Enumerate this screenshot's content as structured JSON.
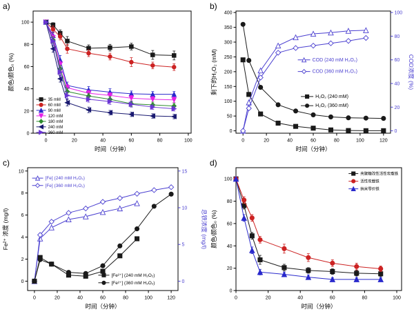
{
  "figure": {
    "xlabel_shared": "时间（分钟）",
    "accent_blue": "#4a3fd0",
    "background": "#ffffff"
  },
  "chart_data": [
    {
      "id": "a",
      "type": "line",
      "panel_label": "a)",
      "xlabel": "时间（分钟）",
      "ylabel": "颜色/颜色₀ (%)",
      "xlim": [
        -9,
        102
      ],
      "ylim": [
        0,
        110
      ],
      "xticks": [
        0,
        20,
        40,
        60,
        80,
        100
      ],
      "yticks": [
        0,
        20,
        40,
        60,
        80,
        100
      ],
      "margins": {
        "l": 48,
        "r": 23,
        "t": 16,
        "b": 34
      },
      "legend_position": "lower-left",
      "grid": false,
      "series": [
        {
          "name": "35 mM",
          "color": "#1a1a1a",
          "label_color": "#000000",
          "marker": "square",
          "fill": true,
          "axis": "left",
          "x": [
            0,
            5,
            10,
            15,
            30,
            45,
            60,
            75,
            90
          ],
          "y": [
            100,
            97.5,
            90,
            83,
            76.5,
            77,
            78,
            70.5,
            70
          ],
          "yerr": [
            0,
            2,
            3,
            4,
            3,
            3,
            3,
            4,
            4
          ]
        },
        {
          "name": "60 mM",
          "color": "#cc2222",
          "label_color": "#000000",
          "marker": "circle",
          "fill": true,
          "axis": "left",
          "x": [
            0,
            5,
            10,
            15,
            30,
            45,
            60,
            75,
            90
          ],
          "y": [
            100,
            93.5,
            87,
            76,
            72,
            69,
            64,
            61,
            59.5
          ],
          "yerr": [
            0,
            3,
            3,
            4,
            3,
            3,
            4,
            3,
            3
          ]
        },
        {
          "name": "90 mM",
          "color": "#2929cc",
          "label_color": "#000000",
          "marker": "triangle-up",
          "fill": true,
          "axis": "left",
          "x": [
            0,
            5,
            10,
            15,
            30,
            45,
            60,
            75,
            90
          ],
          "y": [
            100,
            88,
            66,
            43,
            39,
            37,
            35.5,
            35,
            35
          ],
          "yerr": [
            0,
            3,
            4,
            3,
            3,
            3,
            2.5,
            2.5,
            2.5
          ]
        },
        {
          "name": "120 mM",
          "color": "#e622e6",
          "label_color": "#000000",
          "marker": "triangle-down",
          "fill": true,
          "axis": "left",
          "x": [
            0,
            5,
            10,
            15,
            30,
            45,
            60,
            75,
            90
          ],
          "y": [
            100,
            86,
            62,
            41,
            36,
            34,
            31.5,
            30.5,
            30
          ],
          "yerr": [
            0,
            3,
            3,
            3,
            2.5,
            2.5,
            2.5,
            2.5,
            2.5
          ]
        },
        {
          "name": "180 mM",
          "color": "#2e8b2e",
          "label_color": "#000000",
          "marker": "diamond",
          "fill": true,
          "axis": "left",
          "x": [
            0,
            5,
            10,
            15,
            30,
            45,
            60,
            75,
            90
          ],
          "y": [
            100,
            84,
            58,
            37.5,
            33.5,
            30.5,
            26.5,
            25.5,
            24.5
          ],
          "yerr": [
            0,
            3,
            3,
            3,
            2.5,
            2.5,
            2.5,
            2.5,
            2.5
          ]
        },
        {
          "name": "240 mM",
          "color": "#191970",
          "label_color": "#000000",
          "marker": "triangle-left",
          "fill": true,
          "axis": "left",
          "x": [
            0,
            5,
            10,
            15,
            30,
            45,
            60,
            75,
            90
          ],
          "y": [
            100,
            76,
            49,
            27.5,
            21,
            18.5,
            17,
            15.5,
            15
          ],
          "yerr": [
            0,
            3,
            3,
            3,
            2.5,
            2,
            2,
            2,
            2
          ]
        },
        {
          "name": "360 mM",
          "color": "#6a35d4",
          "label_color": "#000000",
          "marker": "triangle-right",
          "fill": true,
          "axis": "left",
          "x": [
            0,
            5,
            10,
            15,
            30,
            45,
            60,
            75,
            90
          ],
          "y": [
            100,
            83,
            55,
            34,
            30.5,
            28.5,
            26,
            23.5,
            22
          ],
          "yerr": [
            0,
            3,
            3,
            3,
            2.5,
            2.5,
            2.5,
            2,
            2
          ]
        }
      ],
      "legends": [
        {
          "x": 0.02,
          "y": 0.723,
          "dy": 0.045,
          "font": 6,
          "line": 14,
          "gap": 17,
          "series": [
            0,
            1,
            2,
            3,
            4,
            5,
            6
          ]
        }
      ]
    },
    {
      "id": "b",
      "type": "line",
      "panel_label": "b)",
      "xlabel": "时间（分钟）",
      "ylabel": "剩下的H₂O₂ (mM)",
      "y2label": "COD浓度 (%)",
      "y2color": "#4a3fd0",
      "xlim": [
        -6,
        126
      ],
      "ylim": [
        -8,
        405
      ],
      "y2lim": [
        -2,
        101.25
      ],
      "xticks": [
        0,
        20,
        40,
        60,
        80,
        100,
        120
      ],
      "yticks": [
        0,
        50,
        100,
        150,
        200,
        250,
        300,
        350,
        400
      ],
      "y2ticks": [
        0,
        20,
        40,
        60,
        80,
        100
      ],
      "margins": {
        "l": 42,
        "r": 34,
        "t": 16,
        "b": 34
      },
      "legend_position": "center-right",
      "grid": false,
      "series": [
        {
          "name": "H₂O₂ (240 mM)",
          "color": "#1a1a1a",
          "label_color": "#000000",
          "marker": "square",
          "fill": true,
          "axis": "left",
          "x": [
            0,
            5,
            15,
            30,
            45,
            60,
            75,
            90,
            105,
            120
          ],
          "y": [
            240,
            123,
            57,
            26,
            15,
            9,
            3,
            1,
            0.5,
            0.5
          ]
        },
        {
          "name": "H₂O₂ (360 mM)",
          "color": "#1a1a1a",
          "label_color": "#000000",
          "marker": "circle",
          "fill": true,
          "axis": "left",
          "x": [
            0,
            5,
            15,
            30,
            45,
            60,
            75,
            90,
            105,
            120
          ],
          "y": [
            360,
            238,
            147,
            88,
            67,
            54,
            47,
            44,
            43,
            42
          ]
        },
        {
          "name": "COD (240 mM H₂O₂)",
          "color": "#4a3fd0",
          "label_color": "#4a3fd0",
          "marker": "triangle-up",
          "fill": false,
          "axis": "right",
          "x": [
            0,
            5,
            15,
            30,
            45,
            60,
            75,
            90,
            105
          ],
          "y": [
            0,
            24,
            51,
            72,
            79,
            82,
            83,
            84.5,
            85
          ]
        },
        {
          "name": "COD (360 mM H₂O₂)",
          "color": "#4a3fd0",
          "label_color": "#4a3fd0",
          "marker": "diamond",
          "fill": false,
          "axis": "right",
          "x": [
            0,
            5,
            15,
            30,
            45,
            60,
            75,
            90,
            105
          ],
          "y": [
            0,
            19,
            45,
            66,
            70,
            72,
            74,
            76,
            78.5
          ]
        }
      ],
      "legends": [
        {
          "x": 0.4,
          "y": 0.4,
          "dy": 0.095,
          "font": 7,
          "line": 18,
          "gap": 21,
          "series": [
            2,
            3
          ]
        },
        {
          "x": 0.42,
          "y": 0.7,
          "dy": 0.075,
          "font": 7,
          "line": 18,
          "gap": 21,
          "series": [
            0,
            1
          ]
        }
      ]
    },
    {
      "id": "c",
      "type": "line",
      "panel_label": "c)",
      "xlabel": "时间（分钟）",
      "ylabel": "Fe²⁺ 浓度 (mg/l)",
      "y2label": "总铁浓度 (mg/l)",
      "y2color": "#4a3fd0",
      "xlim": [
        -6,
        126
      ],
      "ylim": [
        -0.85,
        10.3
      ],
      "y2lim": [
        -1.275,
        15.45
      ],
      "xticks": [
        0,
        20,
        40,
        60,
        80,
        100,
        120
      ],
      "yticks": [
        0,
        2,
        4,
        6,
        8,
        10
      ],
      "y2ticks": [
        0,
        5,
        10,
        15
      ],
      "margins": {
        "l": 40,
        "r": 42,
        "t": 16,
        "b": 34
      },
      "legend_position": "top-left-and-bottom-right",
      "grid": false,
      "series": [
        {
          "name": "[Fe] (240 mM H₂O₂)",
          "color": "#4a3fd0",
          "label_color": "#4a3fd0",
          "marker": "triangle-up",
          "fill": false,
          "axis": "right",
          "x": [
            0,
            5,
            15,
            30,
            45,
            60,
            75,
            90
          ],
          "y": [
            0,
            5.8,
            7.3,
            8.4,
            8.8,
            9.4,
            9.9,
            10.6
          ]
        },
        {
          "name": "[Fe] (360 mM H₂O₂)",
          "color": "#4a3fd0",
          "label_color": "#4a3fd0",
          "marker": "diamond",
          "fill": false,
          "axis": "right",
          "x": [
            0,
            5,
            15,
            30,
            45,
            60,
            75,
            90,
            105,
            120
          ],
          "y": [
            0,
            6.3,
            8.1,
            9.3,
            9.9,
            10.8,
            11.3,
            11.9,
            12.4,
            12.8
          ]
        },
        {
          "name": "[Fe²⁺] (240 mM H₂O₂)",
          "color": "#1a1a1a",
          "label_color": "#000000",
          "marker": "square",
          "fill": true,
          "axis": "left",
          "x": [
            0,
            5,
            15,
            30,
            45,
            60,
            75,
            90
          ],
          "y": [
            0,
            2.15,
            1.55,
            0.55,
            0.45,
            0.9,
            2.3,
            3.85
          ]
        },
        {
          "name": "[Fe²⁺] (360 mM H₂O₂)",
          "color": "#1a1a1a",
          "label_color": "#000000",
          "marker": "circle",
          "fill": true,
          "axis": "left",
          "x": [
            0,
            5,
            15,
            30,
            45,
            60,
            75,
            90,
            105,
            120
          ],
          "y": [
            0,
            1.95,
            1.55,
            0.8,
            0.7,
            1.4,
            3.2,
            4.75,
            6.8,
            7.9
          ]
        }
      ],
      "legends": [
        {
          "x": 0.03,
          "y": 0.085,
          "dy": 0.06,
          "font": 6.5,
          "line": 16,
          "gap": 19,
          "series": [
            0,
            1
          ]
        },
        {
          "x": 0.47,
          "y": 0.875,
          "dy": 0.062,
          "font": 6.5,
          "line": 16,
          "gap": 19,
          "series": [
            2,
            3
          ]
        }
      ]
    },
    {
      "id": "d",
      "type": "line",
      "panel_label": "d)",
      "xlabel": "时间（分钟）",
      "ylabel": "颜色/颜色₀ (%)",
      "xlim": [
        0,
        103
      ],
      "ylim": [
        0,
        110
      ],
      "xticks": [
        0,
        20,
        40,
        60,
        80,
        100
      ],
      "yticks": [
        0,
        20,
        40,
        60,
        80,
        100
      ],
      "margins": {
        "l": 42,
        "r": 18,
        "t": 16,
        "b": 34
      },
      "legend_position": "upper-right",
      "grid": false,
      "series": [
        {
          "name": "壳聚糖改性活性炭载铁",
          "color": "#1a1a1a",
          "label_color": "#000000",
          "marker": "square",
          "fill": true,
          "axis": "left",
          "x": [
            0,
            5,
            10,
            15,
            30,
            45,
            60,
            75,
            90
          ],
          "y": [
            100,
            76,
            49,
            27.5,
            20.5,
            18,
            17,
            15.5,
            15
          ],
          "yerr": [
            0,
            3,
            3,
            4,
            3,
            2.5,
            2.5,
            2.5,
            2.5
          ]
        },
        {
          "name": "活性炭载铁",
          "color": "#cc2222",
          "label_color": "#000000",
          "marker": "circle",
          "fill": true,
          "axis": "left",
          "x": [
            0,
            5,
            10,
            15,
            30,
            45,
            60,
            75,
            90
          ],
          "y": [
            100,
            81,
            65,
            45.5,
            37.5,
            29.5,
            24.5,
            21.5,
            19.5
          ],
          "yerr": [
            0,
            3,
            3,
            3,
            4,
            3.5,
            3,
            3,
            2.5
          ]
        },
        {
          "name": "纳米零价铁",
          "color": "#2929cc",
          "label_color": "#000000",
          "marker": "triangle-up",
          "fill": true,
          "axis": "left",
          "x": [
            0,
            5,
            10,
            15,
            30,
            45,
            60,
            75,
            90
          ],
          "y": [
            100,
            65,
            36,
            16.5,
            14.5,
            12,
            10,
            10,
            10
          ],
          "yerr": [
            0,
            3,
            3,
            2.5,
            2,
            2,
            1.5,
            1.5,
            1.5
          ]
        }
      ],
      "legends": [
        {
          "x": 0.68,
          "y": 0.048,
          "dy": 0.062,
          "font": 5.5,
          "line": 14,
          "gap": 17,
          "series": [
            0,
            1,
            2
          ]
        }
      ]
    }
  ]
}
